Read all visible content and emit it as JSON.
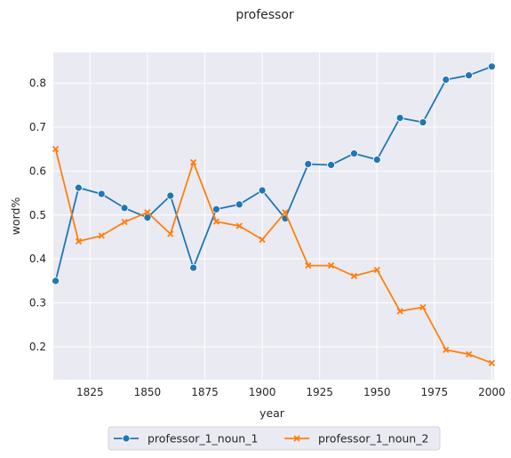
{
  "chart_data": {
    "type": "line",
    "title": "professor",
    "xlabel": "year",
    "ylabel": "word%",
    "xlim": [
      1809,
      2001
    ],
    "ylim": [
      0.125,
      0.87
    ],
    "x_ticks": [
      1825,
      1850,
      1875,
      1900,
      1925,
      1950,
      1975,
      2000
    ],
    "y_ticks": [
      0.2,
      0.3,
      0.4,
      0.5,
      0.6,
      0.7,
      0.8
    ],
    "x_tick_labels": [
      "1825",
      "1850",
      "1875",
      "1900",
      "1925",
      "1950",
      "1975",
      "2000"
    ],
    "y_tick_labels": [
      "0.2",
      "0.3",
      "0.4",
      "0.5",
      "0.6",
      "0.7",
      "0.8"
    ],
    "grid": true,
    "legend_position": "bottom-center",
    "x": [
      1810,
      1820,
      1830,
      1840,
      1850,
      1860,
      1870,
      1880,
      1890,
      1900,
      1910,
      1920,
      1930,
      1940,
      1950,
      1960,
      1970,
      1980,
      1990,
      2000
    ],
    "series": [
      {
        "name": "professor_1_noun_1",
        "color": "#1f77b4",
        "marker": "circle",
        "values": [
          0.35,
          0.562,
          0.548,
          0.516,
          0.494,
          0.544,
          0.38,
          0.513,
          0.524,
          0.556,
          0.492,
          0.616,
          0.614,
          0.64,
          0.626,
          0.721,
          0.711,
          0.808,
          0.818,
          0.838
        ]
      },
      {
        "name": "professor_1_noun_2",
        "color": "#ff7f0e",
        "marker": "x",
        "values": [
          0.65,
          0.44,
          0.453,
          0.484,
          0.506,
          0.457,
          0.62,
          0.485,
          0.475,
          0.444,
          0.506,
          0.385,
          0.385,
          0.361,
          0.375,
          0.281,
          0.29,
          0.193,
          0.183,
          0.163
        ]
      }
    ]
  }
}
